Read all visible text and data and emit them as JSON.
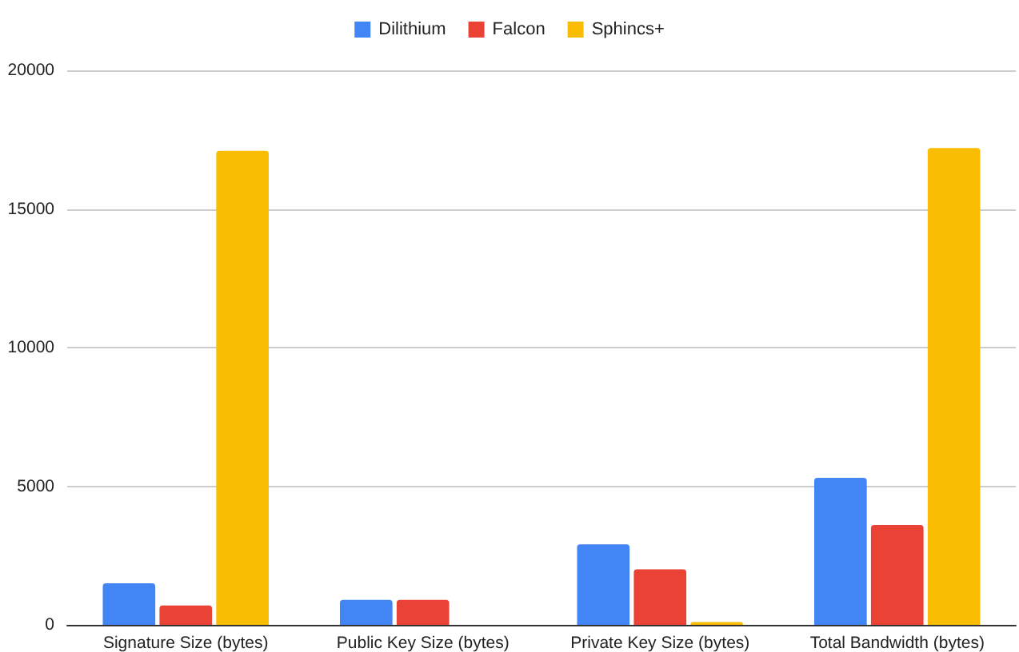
{
  "chart_data": {
    "type": "bar",
    "categories": [
      "Signature Size (bytes)",
      "Public Key Size (bytes)",
      "Private Key Size (bytes)",
      "Total Bandwidth (bytes)"
    ],
    "series": [
      {
        "name": "Dilithium",
        "color": "#4285f4",
        "values": [
          1500,
          900,
          2900,
          5300
        ]
      },
      {
        "name": "Falcon",
        "color": "#ea4335",
        "values": [
          700,
          900,
          2000,
          3600
        ]
      },
      {
        "name": "Sphincs+",
        "color": "#fbbc04",
        "values": [
          17100,
          0,
          100,
          17200
        ]
      }
    ],
    "ylim": [
      0,
      20000
    ],
    "yticks": [
      0,
      5000,
      10000,
      15000,
      20000
    ],
    "grid": "y",
    "legend": "top"
  }
}
